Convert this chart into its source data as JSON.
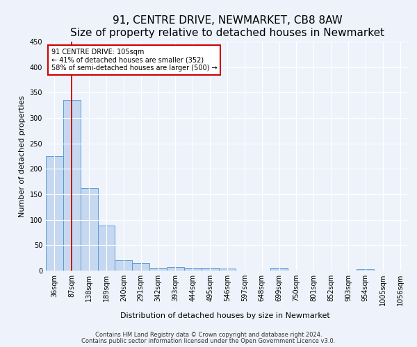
{
  "title": "91, CENTRE DRIVE, NEWMARKET, CB8 8AW",
  "subtitle": "Size of property relative to detached houses in Newmarket",
  "xlabel": "Distribution of detached houses by size in Newmarket",
  "ylabel": "Number of detached properties",
  "bar_labels": [
    "36sqm",
    "87sqm",
    "138sqm",
    "189sqm",
    "240sqm",
    "291sqm",
    "342sqm",
    "393sqm",
    "444sqm",
    "495sqm",
    "546sqm",
    "597sqm",
    "648sqm",
    "699sqm",
    "750sqm",
    "801sqm",
    "852sqm",
    "903sqm",
    "954sqm",
    "1005sqm",
    "1056sqm"
  ],
  "bar_values": [
    225,
    335,
    162,
    88,
    21,
    15,
    6,
    7,
    5,
    5,
    4,
    0,
    0,
    5,
    0,
    0,
    0,
    0,
    3,
    0,
    0
  ],
  "bar_color": "#c5d8f0",
  "bar_edge_color": "#5b9bd5",
  "annotation_text_line1": "91 CENTRE DRIVE: 105sqm",
  "annotation_text_line2": "← 41% of detached houses are smaller (352)",
  "annotation_text_line3": "58% of semi-detached houses are larger (500) →",
  "annotation_box_color": "#ffffff",
  "annotation_box_edge_color": "#cc0000",
  "vline_color": "#cc0000",
  "vline_x": 1.0,
  "ylim": [
    0,
    450
  ],
  "yticks": [
    0,
    50,
    100,
    150,
    200,
    250,
    300,
    350,
    400,
    450
  ],
  "footnote1": "Contains HM Land Registry data © Crown copyright and database right 2024.",
  "footnote2": "Contains public sector information licensed under the Open Government Licence v3.0.",
  "bg_color": "#eef3fb",
  "plot_bg_color": "#eef3fb",
  "grid_color": "#ffffff",
  "title_fontsize": 11,
  "axis_label_fontsize": 8,
  "tick_fontsize": 7,
  "footnote_fontsize": 6
}
